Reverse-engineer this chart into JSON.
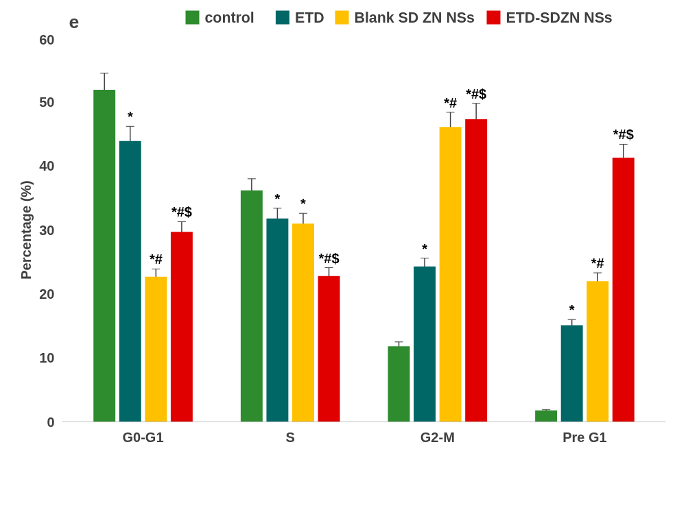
{
  "chart_data": {
    "type": "bar",
    "ylabel": "Percentage (%)",
    "categories": [
      "G0-G1",
      "S",
      "G2-M",
      "Pre G1"
    ],
    "series": [
      {
        "name": "control",
        "color": "#2e8b2e",
        "values": [
          51.9,
          36.2,
          11.8,
          1.8
        ],
        "errors": [
          2.6,
          1.8,
          0.7,
          0.1
        ],
        "value_labels": [
          null,
          null,
          null,
          null
        ]
      },
      {
        "name": "ETD",
        "color": "#006666",
        "values": [
          43.9,
          31.8,
          24.3,
          15.1
        ],
        "errors": [
          2.3,
          1.6,
          1.3,
          0.9
        ],
        "value_labels": [
          "*",
          "*",
          "*",
          "*"
        ]
      },
      {
        "name": "Blank SD ZN NSs",
        "color": "#ffc000",
        "values": [
          22.7,
          31.0,
          46.1,
          22.0
        ],
        "errors": [
          1.2,
          1.6,
          2.3,
          1.3
        ],
        "value_labels": [
          "*#",
          "*",
          "*#",
          "*#"
        ]
      },
      {
        "name": "ETD-SDZN NSs",
        "color": "#e00000",
        "values": [
          29.7,
          22.8,
          47.3,
          41.3
        ],
        "errors": [
          1.6,
          1.3,
          2.5,
          2.1
        ],
        "value_labels": [
          "*#$",
          "*#$",
          "*#$",
          "*#$"
        ]
      }
    ],
    "ylim": [
      0,
      60
    ],
    "yticks": [
      0,
      10,
      20,
      30,
      40,
      50,
      60
    ],
    "grid": false,
    "legend": "top",
    "annotations": [
      "e"
    ]
  }
}
